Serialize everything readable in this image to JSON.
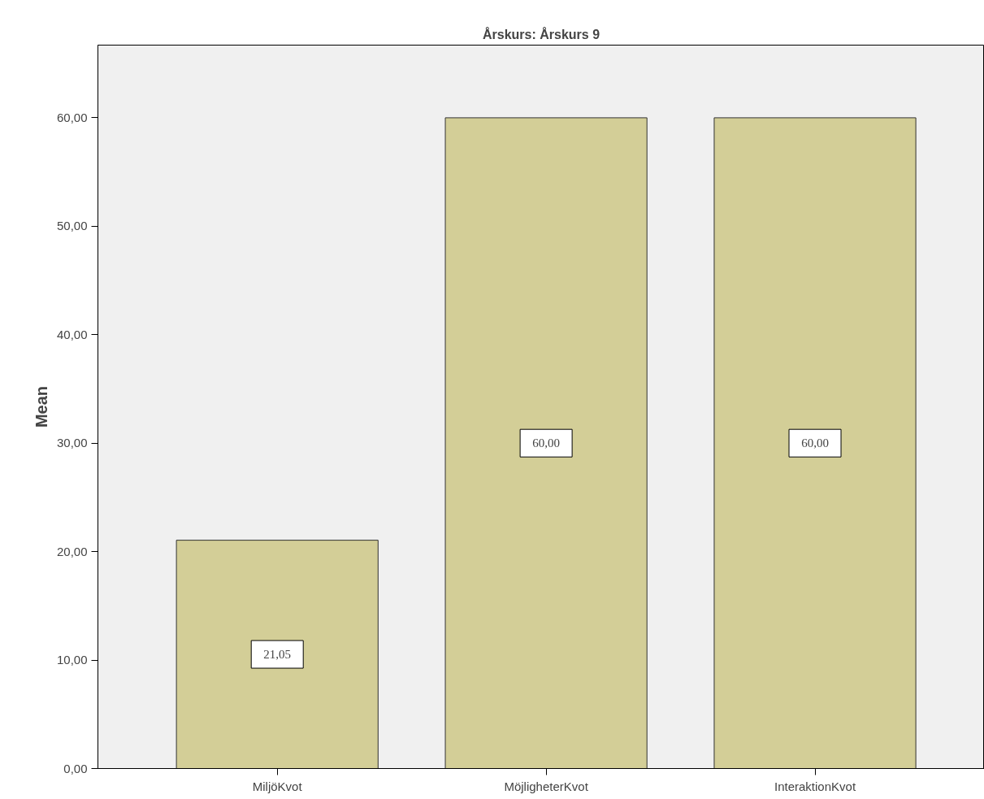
{
  "chart_data": {
    "type": "bar",
    "title": "Årskurs: Årskurs 9",
    "ylabel": "Mean",
    "categories": [
      "MiljöKvot",
      "MöjligheterKvot",
      "InteraktionKvot"
    ],
    "values": [
      21.05,
      60,
      60
    ],
    "color": "#d3ce97",
    "value_labels": [
      "21,05",
      "60,00",
      "60,00"
    ],
    "ylim": [
      0,
      66.7
    ],
    "yticks": [
      {
        "value": 0,
        "label": "0,00"
      },
      {
        "value": 10,
        "label": "10,00"
      },
      {
        "value": 20,
        "label": "20,00"
      },
      {
        "value": 30,
        "label": "30,00"
      },
      {
        "value": 40,
        "label": "40,00"
      },
      {
        "value": 50,
        "label": "50,00"
      },
      {
        "value": 60,
        "label": "60,00"
      }
    ],
    "grid": false
  }
}
